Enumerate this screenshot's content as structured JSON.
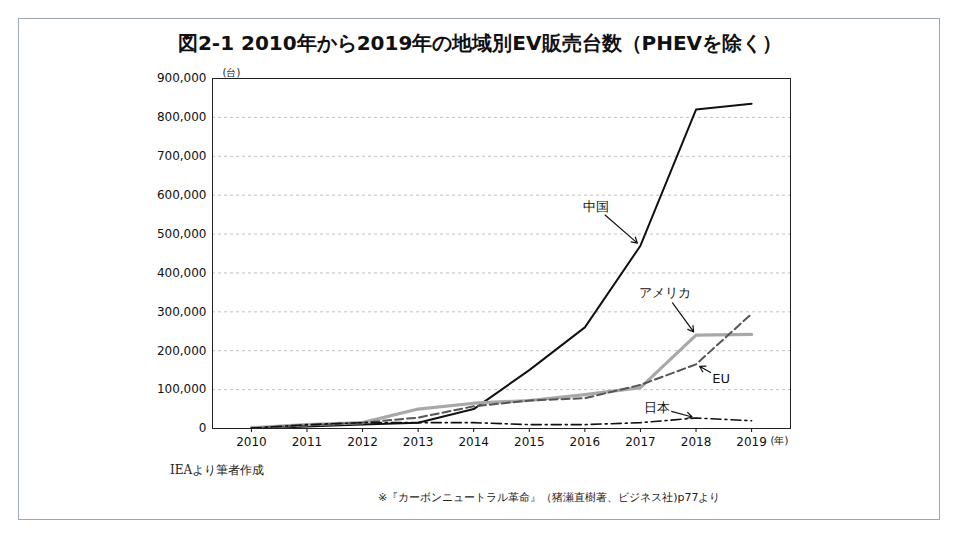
{
  "chart_data": {
    "type": "line",
    "title": "図2-1 2010年から2019年の地域別EV販売台数（PHEVを除く）",
    "x_label": "(年)",
    "y_label": "(台)",
    "source": "IEAより筆者作成",
    "footnote": "※『カーボンニュートラル革命』（猪瀬直樹著、ビジネス社)p77より",
    "x": [
      2010,
      2011,
      2012,
      2013,
      2014,
      2015,
      2016,
      2017,
      2018,
      2019
    ],
    "series": [
      {
        "name": "中国",
        "color": "#111111",
        "line_style": "solid",
        "values": [
          0,
          5000,
          10000,
          15000,
          50000,
          150000,
          260000,
          470000,
          820000,
          835000
        ]
      },
      {
        "name": "アメリカ",
        "color": "#a8a8a8",
        "line_style": "solid",
        "values": [
          2000,
          10000,
          15000,
          50000,
          65000,
          72000,
          87000,
          105000,
          240000,
          242000
        ]
      },
      {
        "name": "EU",
        "color": "#555555",
        "line_style": "dashed",
        "values": [
          1000,
          8000,
          15000,
          28000,
          57000,
          72000,
          78000,
          112000,
          165000,
          295000
        ]
      },
      {
        "name": "日本",
        "color": "#111111",
        "line_style": "dashdot",
        "values": [
          1000,
          10000,
          15000,
          15000,
          15000,
          10000,
          10000,
          15000,
          27000,
          20000
        ]
      }
    ],
    "xlim": [
      2009.3,
      2019.7
    ],
    "xticks": [
      2010,
      2011,
      2012,
      2013,
      2014,
      2015,
      2016,
      2017,
      2018,
      2019
    ],
    "ylim": [
      0,
      900000
    ],
    "yticks": [
      0,
      {
        "value": 100000,
        "label": "100,000"
      },
      {
        "value": 200000,
        "label": "200,000"
      },
      {
        "value": 300000,
        "label": "300,000"
      },
      {
        "value": 400000,
        "label": "400,000"
      },
      {
        "value": 500000,
        "label": "500,000"
      },
      {
        "value": 600000,
        "label": "600,000"
      },
      {
        "value": 700000,
        "label": "700,000"
      },
      {
        "value": 800000,
        "label": "800,000"
      },
      {
        "value": 900000,
        "label": "900,000"
      }
    ],
    "grid": true
  }
}
